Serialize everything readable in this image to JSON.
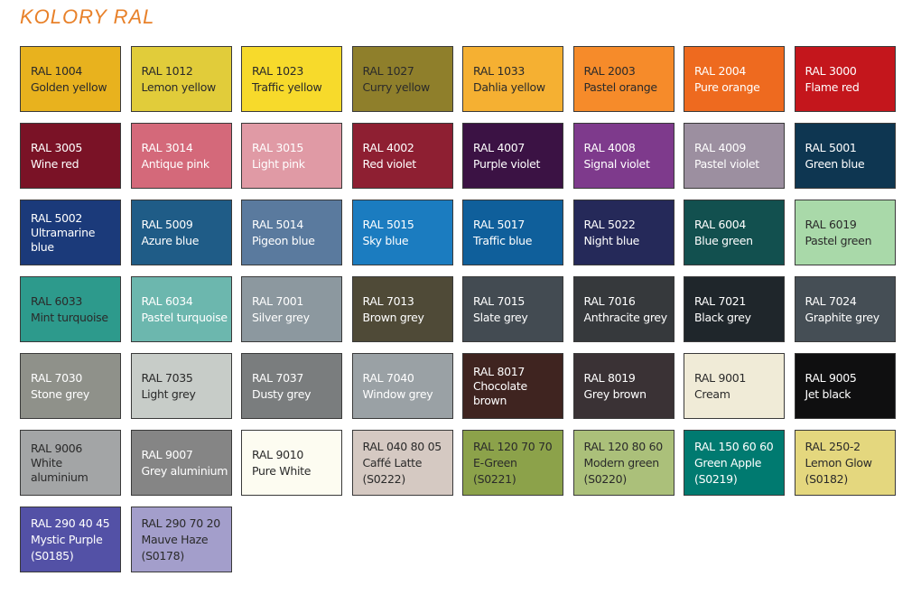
{
  "title": "KOLORY RAL",
  "swatches": [
    {
      "lines": [
        "RAL 1004",
        "Golden yellow"
      ],
      "color": "#E8B21E",
      "text": "dark"
    },
    {
      "lines": [
        "RAL 1012",
        "Lemon yellow"
      ],
      "color": "#E1CC3A",
      "text": "dark"
    },
    {
      "lines": [
        "RAL 1023",
        "Traffic yellow"
      ],
      "color": "#F7DA2B",
      "text": "dark"
    },
    {
      "lines": [
        "RAL 1027",
        "Curry yellow"
      ],
      "color": "#8F7F2B",
      "text": "dark"
    },
    {
      "lines": [
        "RAL 1033",
        "Dahlia yellow"
      ],
      "color": "#F5B032",
      "text": "dark"
    },
    {
      "lines": [
        "RAL 2003",
        "Pastel orange"
      ],
      "color": "#F68B2A",
      "text": "dark"
    },
    {
      "lines": [
        "RAL 2004",
        "Pure orange"
      ],
      "color": "#EE6A1F",
      "text": "light"
    },
    {
      "lines": [
        "RAL 3000",
        "Flame red"
      ],
      "color": "#C4161C",
      "text": "light"
    },
    {
      "lines": [
        "RAL 3005",
        "Wine red"
      ],
      "color": "#7A1226",
      "text": "light"
    },
    {
      "lines": [
        "RAL 3014",
        "Antique pink"
      ],
      "color": "#D4697A",
      "text": "light"
    },
    {
      "lines": [
        "RAL 3015",
        "Light pink"
      ],
      "color": "#E09AA5",
      "text": "light"
    },
    {
      "lines": [
        "RAL 4002",
        "Red violet"
      ],
      "color": "#8E1F32",
      "text": "light"
    },
    {
      "lines": [
        "RAL 4007",
        "Purple violet"
      ],
      "color": "#3B1244",
      "text": "light"
    },
    {
      "lines": [
        "RAL 4008",
        "Signal violet"
      ],
      "color": "#7E3A8C",
      "text": "light"
    },
    {
      "lines": [
        "RAL 4009",
        "Pastel violet"
      ],
      "color": "#9C8FA0",
      "text": "light"
    },
    {
      "lines": [
        "RAL 5001",
        "Green blue"
      ],
      "color": "#0E3651",
      "text": "light"
    },
    {
      "lines": [
        "RAL 5002",
        "Ultramarine",
        "blue"
      ],
      "color": "#1B3A7A",
      "text": "light"
    },
    {
      "lines": [
        "RAL 5009",
        "Azure blue"
      ],
      "color": "#1F5C87",
      "text": "light"
    },
    {
      "lines": [
        "RAL 5014",
        "Pigeon blue"
      ],
      "color": "#5A7A9E",
      "text": "light"
    },
    {
      "lines": [
        "RAL 5015",
        "Sky blue"
      ],
      "color": "#1B7CC0",
      "text": "light"
    },
    {
      "lines": [
        "RAL 5017",
        "Traffic blue"
      ],
      "color": "#0F5F9B",
      "text": "light"
    },
    {
      "lines": [
        "RAL 5022",
        "Night blue"
      ],
      "color": "#252959",
      "text": "light"
    },
    {
      "lines": [
        "RAL 6004",
        "Blue green"
      ],
      "color": "#12504F",
      "text": "light"
    },
    {
      "lines": [
        "RAL 6019",
        "Pastel green"
      ],
      "color": "#A9D9A9",
      "text": "dark"
    },
    {
      "lines": [
        "RAL 6033",
        "Mint turquoise"
      ],
      "color": "#2D9A8C",
      "text": "dark"
    },
    {
      "lines": [
        "RAL 6034",
        "Pastel turquoise"
      ],
      "color": "#6CB7AE",
      "text": "light"
    },
    {
      "lines": [
        "RAL 7001",
        "Silver grey"
      ],
      "color": "#8C989F",
      "text": "light"
    },
    {
      "lines": [
        "RAL 7013",
        "Brown grey"
      ],
      "color": "#4F4A37",
      "text": "light"
    },
    {
      "lines": [
        "RAL 7015",
        "Slate grey"
      ],
      "color": "#434B52",
      "text": "light"
    },
    {
      "lines": [
        "RAL 7016",
        "Anthracite grey"
      ],
      "color": "#36393C",
      "text": "light"
    },
    {
      "lines": [
        "RAL 7021",
        "Black grey"
      ],
      "color": "#1F262B",
      "text": "light"
    },
    {
      "lines": [
        "RAL 7024",
        "Graphite grey"
      ],
      "color": "#454E55",
      "text": "light"
    },
    {
      "lines": [
        "RAL 7030",
        "Stone grey"
      ],
      "color": "#8F918A",
      "text": "light"
    },
    {
      "lines": [
        "RAL 7035",
        "Light grey"
      ],
      "color": "#C7CCC8",
      "text": "dark"
    },
    {
      "lines": [
        "RAL 7037",
        "Dusty grey"
      ],
      "color": "#7A7D7E",
      "text": "light"
    },
    {
      "lines": [
        "RAL 7040",
        "Window grey"
      ],
      "color": "#9AA1A5",
      "text": "light"
    },
    {
      "lines": [
        "RAL 8017",
        "Chocolate",
        "brown"
      ],
      "color": "#3F2420",
      "text": "light"
    },
    {
      "lines": [
        "RAL 8019",
        "Grey brown"
      ],
      "color": "#3A3235",
      "text": "light"
    },
    {
      "lines": [
        "RAL 9001",
        "Cream"
      ],
      "color": "#F0EBD7",
      "text": "dark"
    },
    {
      "lines": [
        "RAL 9005",
        "Jet black"
      ],
      "color": "#0F0F10",
      "text": "light"
    },
    {
      "lines": [
        "RAL 9006",
        "White",
        "aluminium"
      ],
      "color": "#A3A5A6",
      "text": "dark"
    },
    {
      "lines": [
        "RAL 9007",
        "Grey aluminium"
      ],
      "color": "#858585",
      "text": "light"
    },
    {
      "lines": [
        "RAL 9010",
        "Pure White"
      ],
      "color": "#FDFCF1",
      "text": "dark"
    },
    {
      "lines": [
        "RAL 040 80 05",
        "Caffé Latte",
        "(S0222)"
      ],
      "color": "#D5C9C2",
      "text": "dark"
    },
    {
      "lines": [
        "RAL 120 70 70",
        "E-Green",
        "(S0221)"
      ],
      "color": "#8CA24A",
      "text": "dark"
    },
    {
      "lines": [
        "RAL 120 80 60",
        "Modern green",
        "(S0220)"
      ],
      "color": "#ABC07A",
      "text": "dark"
    },
    {
      "lines": [
        "RAL 150 60 60",
        "Green Apple",
        "(S0219)"
      ],
      "color": "#007A70",
      "text": "light"
    },
    {
      "lines": [
        "RAL 250-2",
        "Lemon Glow",
        "(S0182)"
      ],
      "color": "#E4D77E",
      "text": "dark"
    },
    {
      "lines": [
        "RAL 290 40 45",
        "Mystic Purple",
        "(S0185)"
      ],
      "color": "#5351A6",
      "text": "light"
    },
    {
      "lines": [
        "RAL 290 70 20",
        "Mauve Haze",
        "(S0178)"
      ],
      "color": "#A39ECB",
      "text": "dark"
    }
  ]
}
